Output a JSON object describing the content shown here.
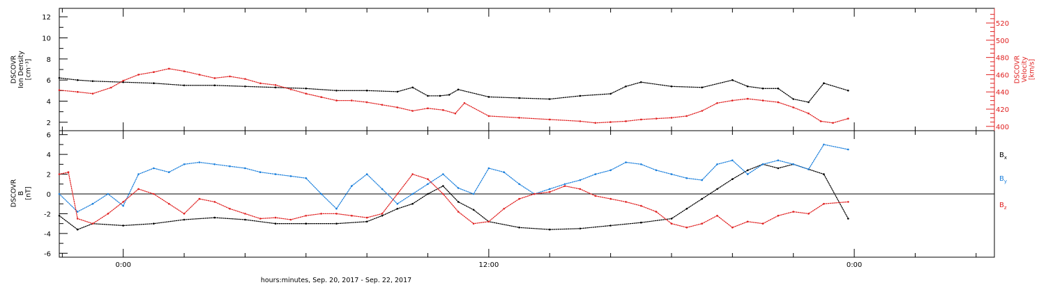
{
  "chart_data": [
    {
      "type": "scatter",
      "panel": "top",
      "ylabel": [
        "DSCOVR",
        "Ion Density",
        "[cm⁻³]"
      ],
      "ylabel_right": [
        "DSCOVR",
        "Velocity",
        "[km/s]"
      ],
      "ylim": [
        1.2,
        12.8
      ],
      "ylim_right": [
        395,
        537
      ],
      "yticks": [
        "2",
        "4",
        "6",
        "8",
        "10",
        "12"
      ],
      "yticks_right": [
        "400",
        "420",
        "440",
        "460",
        "480",
        "500",
        "520"
      ],
      "colors": {
        "density": "#000000",
        "velocity": "#e02020"
      },
      "series": [
        {
          "name": "Ion Density",
          "axis": "left",
          "color": "#000000",
          "x": [
            -2.1,
            -1.5,
            -1.0,
            0.0,
            1.0,
            2.0,
            3.0,
            4.0,
            5.0,
            6.0,
            7.0,
            8.0,
            9.0,
            9.5,
            10.0,
            10.4,
            10.7,
            11.0,
            12.0,
            13.0,
            14.0,
            15.0,
            16.0,
            16.5,
            17.0,
            18.0,
            19.0,
            20.0,
            20.5,
            21.0,
            21.5,
            22.0,
            22.5,
            23.0,
            23.8
          ],
          "y": [
            6.2,
            6.0,
            5.9,
            5.8,
            5.7,
            5.5,
            5.5,
            5.4,
            5.3,
            5.2,
            5.0,
            5.0,
            4.9,
            5.3,
            4.5,
            4.5,
            4.6,
            5.1,
            4.4,
            4.3,
            4.2,
            4.5,
            4.7,
            5.4,
            5.8,
            5.4,
            5.3,
            6.0,
            5.4,
            5.2,
            5.2,
            4.2,
            3.9,
            5.7,
            5.0
          ]
        },
        {
          "name": "Velocity",
          "axis": "right",
          "color": "#e02020",
          "x": [
            -2.1,
            -1.5,
            -1.0,
            -0.4,
            0.0,
            0.5,
            1.0,
            1.5,
            2.0,
            2.5,
            3.0,
            3.5,
            4.0,
            4.5,
            5.0,
            5.5,
            6.0,
            6.5,
            7.0,
            7.5,
            8.0,
            8.5,
            9.0,
            9.5,
            10.0,
            10.5,
            10.9,
            11.2,
            12.0,
            13.0,
            14.0,
            15.0,
            15.5,
            16.0,
            16.5,
            17.0,
            17.5,
            18.0,
            18.5,
            19.0,
            19.5,
            20.0,
            20.5,
            21.0,
            21.5,
            22.0,
            22.5,
            22.9,
            23.3,
            23.8
          ],
          "y": [
            442,
            440,
            438,
            445,
            453,
            460,
            463,
            467,
            464,
            460,
            456,
            458,
            455,
            450,
            448,
            443,
            438,
            434,
            430,
            430,
            428,
            425,
            422,
            418,
            421,
            419,
            415,
            427,
            412,
            410,
            408,
            406,
            404,
            405,
            406,
            408,
            409,
            410,
            412,
            418,
            427,
            430,
            432,
            430,
            428,
            422,
            415,
            406,
            404,
            409
          ]
        }
      ]
    },
    {
      "type": "scatter",
      "panel": "bottom",
      "ylabel": [
        "DSCOVR",
        "B",
        "[nT]"
      ],
      "ylim": [
        -6.4,
        6.4
      ],
      "yticks": [
        "-6",
        "-4",
        "-2",
        "0",
        "2",
        "4",
        "6"
      ],
      "xlabel": "hours:minutes, Sep. 20, 2017 - Sep. 22, 2017",
      "xlim": [
        -2.1,
        28.6
      ],
      "xticks": [
        0,
        12,
        24
      ],
      "xtick_labels": [
        "0:00",
        "12:00",
        "0:00"
      ],
      "zero_line": true,
      "series": [
        {
          "name": "Bx",
          "name_main": "B",
          "name_sub": "x",
          "color": "#000000",
          "x": [
            -2.1,
            -1.5,
            -1.0,
            0.0,
            1.0,
            2.0,
            3.0,
            4.0,
            5.0,
            6.0,
            7.0,
            8.0,
            8.5,
            9.0,
            9.5,
            10.0,
            10.5,
            11.0,
            11.5,
            12.0,
            13.0,
            14.0,
            15.0,
            16.0,
            17.0,
            18.0,
            18.5,
            19.0,
            19.5,
            20.0,
            20.5,
            21.0,
            21.5,
            22.0,
            22.5,
            23.0,
            23.8
          ],
          "y": [
            -2.2,
            -3.6,
            -3.0,
            -3.2,
            -3.0,
            -2.6,
            -2.4,
            -2.6,
            -3.0,
            -3.0,
            -3.0,
            -2.8,
            -2.2,
            -1.5,
            -1.0,
            0.0,
            0.8,
            -0.8,
            -1.6,
            -2.8,
            -3.4,
            -3.6,
            -3.5,
            -3.2,
            -2.9,
            -2.5,
            -1.5,
            -0.5,
            0.5,
            1.5,
            2.4,
            3.0,
            2.6,
            3.0,
            2.5,
            2.0,
            -2.5
          ]
        },
        {
          "name": "By",
          "name_main": "B",
          "name_sub": "y",
          "color": "#1a7fdc",
          "x": [
            -2.1,
            -1.5,
            -1.0,
            -0.5,
            0.0,
            0.5,
            1.0,
            1.5,
            2.0,
            2.5,
            3.0,
            3.5,
            4.0,
            4.5,
            5.0,
            5.5,
            6.0,
            6.5,
            7.0,
            7.5,
            8.0,
            8.5,
            9.0,
            9.5,
            10.0,
            10.5,
            11.0,
            11.5,
            12.0,
            12.5,
            13.0,
            13.5,
            14.0,
            14.5,
            15.0,
            15.5,
            16.0,
            16.5,
            17.0,
            17.5,
            18.0,
            18.5,
            19.0,
            19.5,
            20.0,
            20.5,
            21.0,
            21.5,
            22.0,
            22.5,
            23.0,
            23.8
          ],
          "y": [
            0.0,
            -1.8,
            -1.0,
            0.0,
            -1.2,
            2.0,
            2.6,
            2.2,
            3.0,
            3.2,
            3.0,
            2.8,
            2.6,
            2.2,
            2.0,
            1.8,
            1.6,
            0.0,
            -1.5,
            0.8,
            2.0,
            0.5,
            -1.0,
            0.0,
            1.0,
            2.0,
            0.6,
            0.0,
            2.6,
            2.2,
            1.0,
            0.0,
            0.5,
            1.0,
            1.4,
            2.0,
            2.4,
            3.2,
            3.0,
            2.4,
            2.0,
            1.6,
            1.4,
            3.0,
            3.4,
            2.0,
            3.0,
            3.4,
            3.0,
            2.5,
            5.0,
            4.5
          ]
        },
        {
          "name": "Bz",
          "name_main": "B",
          "name_sub": "z",
          "color": "#e02020",
          "x": [
            -2.1,
            -1.8,
            -1.5,
            -1.0,
            -0.5,
            0.0,
            0.5,
            1.0,
            1.5,
            2.0,
            2.5,
            3.0,
            3.5,
            4.0,
            4.5,
            5.0,
            5.5,
            6.0,
            6.5,
            7.0,
            7.5,
            8.0,
            8.5,
            9.0,
            9.5,
            10.0,
            10.5,
            11.0,
            11.5,
            12.0,
            12.5,
            13.0,
            13.5,
            14.0,
            14.5,
            15.0,
            15.5,
            16.0,
            16.5,
            17.0,
            17.5,
            18.0,
            18.5,
            19.0,
            19.5,
            20.0,
            20.5,
            21.0,
            21.5,
            22.0,
            22.5,
            23.0,
            23.8
          ],
          "y": [
            2.0,
            2.2,
            -2.5,
            -3.0,
            -2.0,
            -0.8,
            0.5,
            0.0,
            -1.0,
            -2.0,
            -0.5,
            -0.8,
            -1.5,
            -2.0,
            -2.5,
            -2.4,
            -2.6,
            -2.2,
            -2.0,
            -2.0,
            -2.2,
            -2.4,
            -2.0,
            0.0,
            2.0,
            1.5,
            0.0,
            -1.8,
            -3.0,
            -2.8,
            -1.5,
            -0.5,
            0.0,
            0.2,
            0.8,
            0.5,
            -0.2,
            -0.5,
            -0.8,
            -1.2,
            -1.8,
            -3.0,
            -3.4,
            -3.0,
            -2.2,
            -3.4,
            -2.8,
            -3.0,
            -2.2,
            -1.8,
            -2.0,
            -1.0,
            -0.8
          ]
        }
      ]
    }
  ]
}
